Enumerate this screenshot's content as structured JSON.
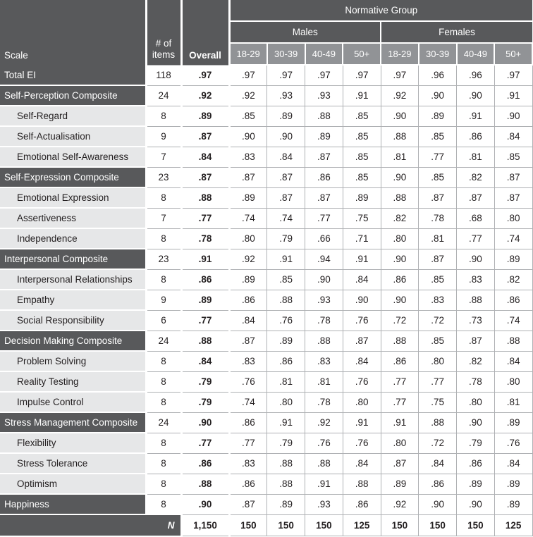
{
  "colors": {
    "dark_gray": "#58595B",
    "medium_gray": "#919396",
    "light_gray": "#E6E7E8",
    "grid_gray": "#AFB1B4",
    "text": "#231F20"
  },
  "table": {
    "header": {
      "scale": "Scale",
      "items": "# of items",
      "overall": "Overall",
      "normative_group": "Normative Group",
      "males": "Males",
      "females": "Females",
      "age_groups": [
        "18-29",
        "30-39",
        "40-49",
        "50+"
      ]
    },
    "rows": [
      {
        "label": "Total EI",
        "type": "composite",
        "items": "118",
        "overall": ".97",
        "values": [
          ".97",
          ".97",
          ".97",
          ".97",
          ".97",
          ".96",
          ".96",
          ".97"
        ]
      },
      {
        "label": "Self-Perception Composite",
        "type": "composite",
        "items": "24",
        "overall": ".92",
        "values": [
          ".92",
          ".93",
          ".93",
          ".91",
          ".92",
          ".90",
          ".90",
          ".91"
        ]
      },
      {
        "label": "Self-Regard",
        "type": "subscale",
        "items": "8",
        "overall": ".89",
        "values": [
          ".85",
          ".89",
          ".88",
          ".85",
          ".90",
          ".89",
          ".91",
          ".90"
        ]
      },
      {
        "label": "Self-Actualisation",
        "type": "subscale",
        "items": "9",
        "overall": ".87",
        "values": [
          ".90",
          ".90",
          ".89",
          ".85",
          ".88",
          ".85",
          ".86",
          ".84"
        ]
      },
      {
        "label": "Emotional Self-Awareness",
        "type": "subscale",
        "items": "7",
        "overall": ".84",
        "values": [
          ".83",
          ".84",
          ".87",
          ".85",
          ".81",
          ".77",
          ".81",
          ".85"
        ]
      },
      {
        "label": "Self-Expression Composite",
        "type": "composite",
        "items": "23",
        "overall": ".87",
        "values": [
          ".87",
          ".87",
          ".86",
          ".85",
          ".90",
          ".85",
          ".82",
          ".87"
        ]
      },
      {
        "label": "Emotional Expression",
        "type": "subscale",
        "items": "8",
        "overall": ".88",
        "values": [
          ".89",
          ".87",
          ".87",
          ".89",
          ".88",
          ".87",
          ".87",
          ".87"
        ]
      },
      {
        "label": "Assertiveness",
        "type": "subscale",
        "items": "7",
        "overall": ".77",
        "values": [
          ".74",
          ".74",
          ".77",
          ".75",
          ".82",
          ".78",
          ".68",
          ".80"
        ]
      },
      {
        "label": "Independence",
        "type": "subscale",
        "items": "8",
        "overall": ".78",
        "values": [
          ".80",
          ".79",
          ".66",
          ".71",
          ".80",
          ".81",
          ".77",
          ".74"
        ]
      },
      {
        "label": "Interpersonal Composite",
        "type": "composite",
        "items": "23",
        "overall": ".91",
        "values": [
          ".92",
          ".91",
          ".94",
          ".91",
          ".90",
          ".87",
          ".90",
          ".89"
        ]
      },
      {
        "label": "Interpersonal Relationships",
        "type": "subscale",
        "items": "8",
        "overall": ".86",
        "values": [
          ".89",
          ".85",
          ".90",
          ".84",
          ".86",
          ".85",
          ".83",
          ".82"
        ]
      },
      {
        "label": "Empathy",
        "type": "subscale",
        "items": "9",
        "overall": ".89",
        "values": [
          ".86",
          ".88",
          ".93",
          ".90",
          ".90",
          ".83",
          ".88",
          ".86"
        ]
      },
      {
        "label": "Social Responsibility",
        "type": "subscale",
        "items": "6",
        "overall": ".77",
        "values": [
          ".84",
          ".76",
          ".78",
          ".76",
          ".72",
          ".72",
          ".73",
          ".74"
        ]
      },
      {
        "label": "Decision Making Composite",
        "type": "composite",
        "items": "24",
        "overall": ".88",
        "values": [
          ".87",
          ".89",
          ".88",
          ".87",
          ".88",
          ".85",
          ".87",
          ".88"
        ]
      },
      {
        "label": "Problem Solving",
        "type": "subscale",
        "items": "8",
        "overall": ".84",
        "values": [
          ".83",
          ".86",
          ".83",
          ".84",
          ".86",
          ".80",
          ".82",
          ".84"
        ]
      },
      {
        "label": "Reality Testing",
        "type": "subscale",
        "items": "8",
        "overall": ".79",
        "values": [
          ".76",
          ".81",
          ".81",
          ".76",
          ".77",
          ".77",
          ".78",
          ".80"
        ]
      },
      {
        "label": "Impulse Control",
        "type": "subscale",
        "items": "8",
        "overall": ".79",
        "values": [
          ".74",
          ".80",
          ".78",
          ".80",
          ".77",
          ".75",
          ".80",
          ".81"
        ]
      },
      {
        "label": "Stress Management Composite",
        "type": "composite",
        "items": "24",
        "overall": ".90",
        "values": [
          ".86",
          ".91",
          ".92",
          ".91",
          ".91",
          ".88",
          ".90",
          ".89"
        ]
      },
      {
        "label": "Flexibility",
        "type": "subscale",
        "items": "8",
        "overall": ".77",
        "values": [
          ".77",
          ".79",
          ".76",
          ".76",
          ".80",
          ".72",
          ".79",
          ".76"
        ]
      },
      {
        "label": "Stress Tolerance",
        "type": "subscale",
        "items": "8",
        "overall": ".86",
        "values": [
          ".83",
          ".88",
          ".88",
          ".84",
          ".87",
          ".84",
          ".86",
          ".84"
        ]
      },
      {
        "label": "Optimism",
        "type": "subscale",
        "items": "8",
        "overall": ".88",
        "values": [
          ".86",
          ".88",
          ".91",
          ".88",
          ".89",
          ".86",
          ".89",
          ".89"
        ]
      },
      {
        "label": "Happiness",
        "type": "composite",
        "items": "8",
        "overall": ".90",
        "values": [
          ".87",
          ".89",
          ".93",
          ".86",
          ".92",
          ".90",
          ".90",
          ".89"
        ]
      }
    ],
    "footer": {
      "label": "N",
      "overall": "1,150",
      "values": [
        "150",
        "150",
        "150",
        "125",
        "150",
        "150",
        "150",
        "125"
      ]
    }
  }
}
